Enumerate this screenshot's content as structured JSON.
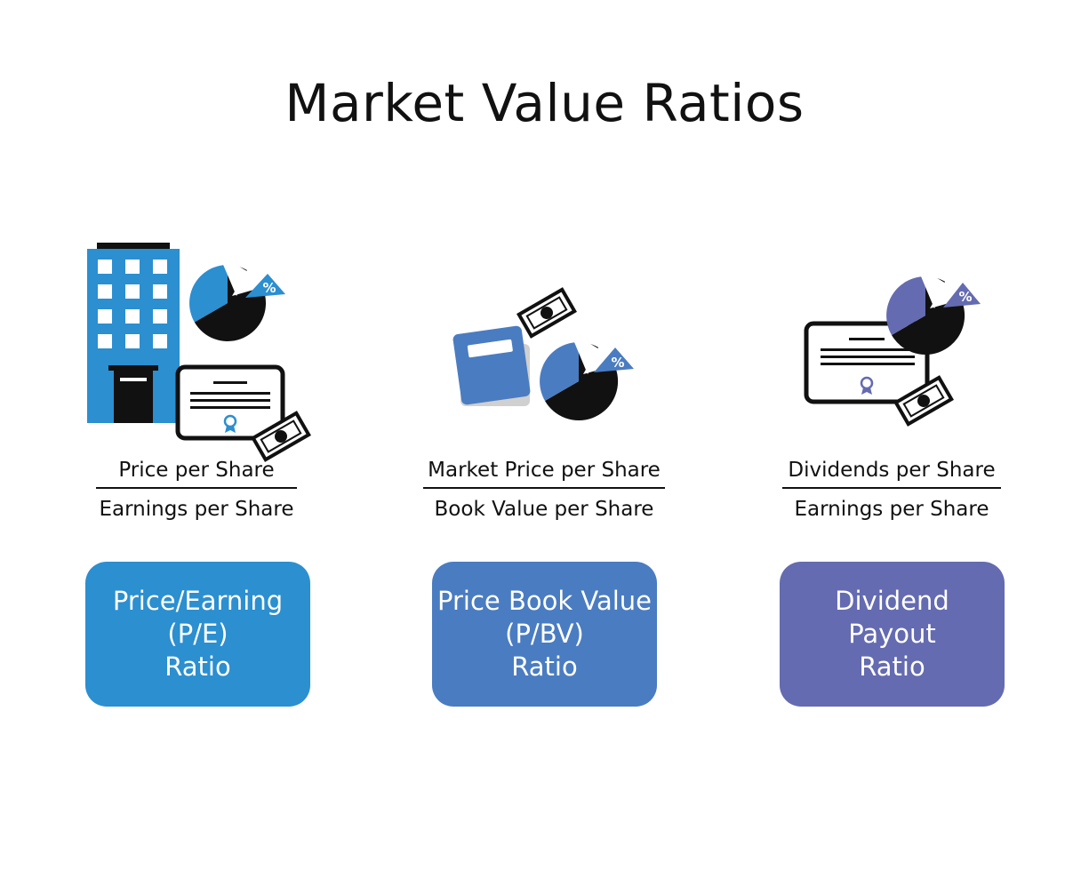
{
  "title": "Market Value Ratios",
  "colors": {
    "pe": "#2b8fd0",
    "pbv": "#4a7cc1",
    "payout": "#646bb0",
    "ink": "#111111"
  },
  "items": [
    {
      "numerator": "Price per Share",
      "denominator": "Earnings per Share",
      "label_lines": [
        "Price/Earning",
        "(P/E)",
        "Ratio"
      ],
      "icons": [
        "building-icon",
        "pie-chart-icon",
        "certificate-icon",
        "banknote-icon"
      ],
      "percent_symbol": "%"
    },
    {
      "numerator": "Market Price per Share",
      "denominator": "Book Value per Share",
      "label_lines": [
        "Price Book Value",
        "(P/BV)",
        "Ratio"
      ],
      "icons": [
        "book-icon",
        "banknote-icon",
        "pie-chart-icon"
      ],
      "percent_symbol": "%"
    },
    {
      "numerator": "Dividends per Share",
      "denominator": "Earnings per Share",
      "label_lines": [
        "Dividend",
        "Payout",
        "Ratio"
      ],
      "icons": [
        "certificate-icon",
        "pie-chart-icon",
        "banknote-icon"
      ],
      "percent_symbol": "%"
    }
  ]
}
